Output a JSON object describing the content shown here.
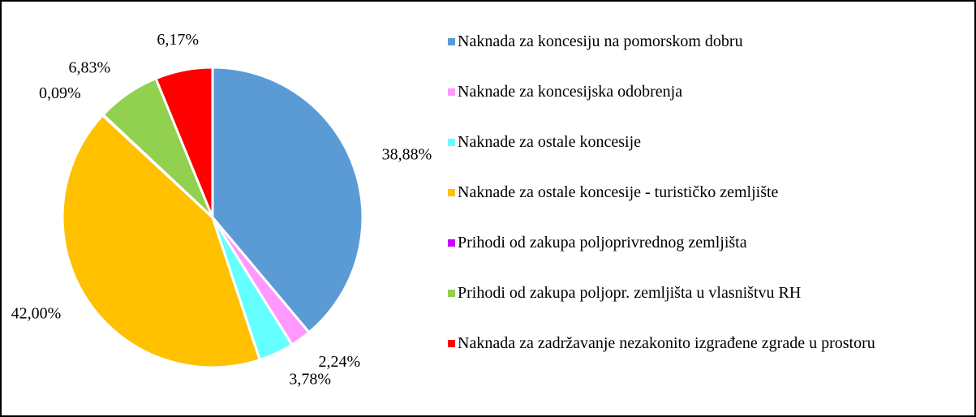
{
  "chart_data": {
    "type": "pie",
    "categories": [
      "Naknada za koncesiju na pomorskom dobru",
      "Naknade za koncesijska odobrenja",
      "Naknade za ostale koncesije",
      "Naknade za ostale koncesije - turističko zemljište",
      "Prihodi od zakupa poljoprivrednog zemljišta",
      "Prihodi od zakupa poljopr. zemljišta u vlasništvu RH",
      "Naknada za zadržavanje nezakonito izgrađene zgrade u prostoru"
    ],
    "values": [
      38.88,
      2.24,
      3.78,
      42.0,
      0.09,
      6.83,
      6.17
    ],
    "value_labels": [
      "38,88%",
      "2,24%",
      "3,78%",
      "42,00%",
      "0,09%",
      "6,83%",
      "6,17%"
    ],
    "colors": [
      "#5b9bd5",
      "#ff99ff",
      "#66ffff",
      "#ffc000",
      "#cc00ff",
      "#92d050",
      "#ff0000"
    ],
    "legend": "right"
  }
}
